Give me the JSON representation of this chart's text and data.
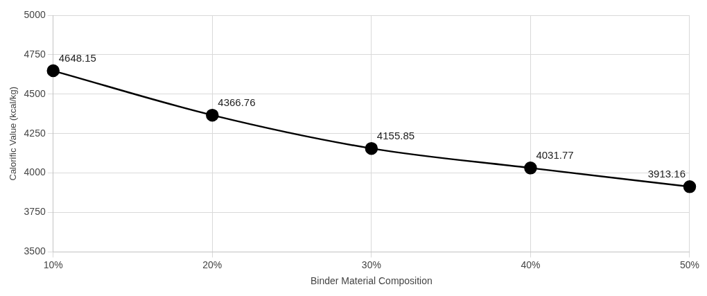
{
  "chart_data": {
    "type": "line",
    "xlabel": "Binder Material Composition",
    "ylabel": "Calorific Value (kcal/kg)",
    "categories": [
      "10%",
      "20%",
      "30%",
      "40%",
      "50%"
    ],
    "series": [
      {
        "color": "#000000",
        "values": [
          4648.15,
          4366.76,
          4155.85,
          4031.77,
          3913.16
        ]
      }
    ],
    "ylim": [
      3500,
      5000
    ],
    "yticks": [
      3500,
      3750,
      4000,
      4250,
      4500,
      4750,
      5000
    ],
    "grid": true,
    "marker": "circle",
    "line_style": "solid",
    "data_labels": true,
    "legend": false
  }
}
